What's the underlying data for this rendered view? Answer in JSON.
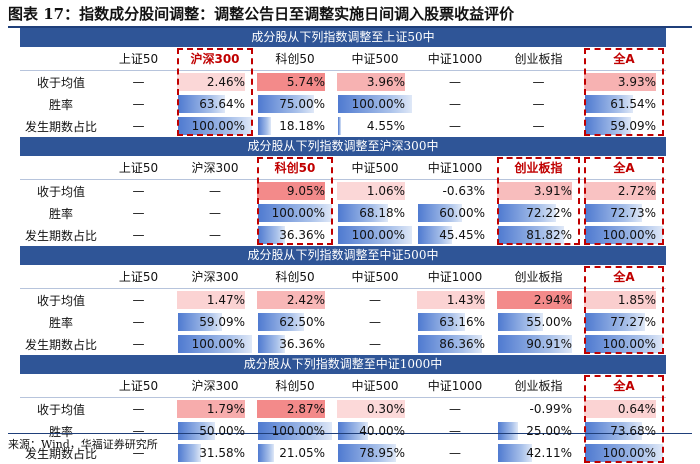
{
  "title": "图表 17：指数成分股间调整：调整公告日至调整实施日间调入股票收益评价",
  "source": "来源：Wind，华福证券研究所",
  "colors": {
    "header_bg": "#2f5597",
    "highlight": "#c00000",
    "bar": "#4f7ad0",
    "pos_strong": "#f07474",
    "pos_light": "#fde4e4"
  },
  "columns": [
    "上证50",
    "沪深300",
    "科创50",
    "中证500",
    "中证1000",
    "创业板指",
    "全A"
  ],
  "row_labels": [
    "收于均值",
    "胜率",
    "发生期数占比"
  ],
  "sections": [
    {
      "title": "成分股从下列指数调整至上证50中",
      "highlight_cols": [
        1,
        6
      ],
      "rows": [
        {
          "values": [
            "—",
            "2.46%",
            "5.74%",
            "3.96%",
            "—",
            "—",
            "3.93%"
          ],
          "kind": "ret",
          "level": [
            null,
            0.12,
            0.8,
            0.45,
            null,
            null,
            0.45
          ]
        },
        {
          "values": [
            "—",
            "63.64%",
            "75.00%",
            "100.00%",
            "—",
            "—",
            "61.54%"
          ],
          "kind": "pct",
          "level": [
            null,
            0.6364,
            0.75,
            1.0,
            null,
            null,
            0.6154
          ]
        },
        {
          "values": [
            "—",
            "100.00%",
            "18.18%",
            "4.55%",
            "—",
            "—",
            "59.09%"
          ],
          "kind": "pct",
          "level": [
            null,
            1.0,
            0.1818,
            0.0455,
            null,
            null,
            0.5909
          ]
        }
      ]
    },
    {
      "title": "成分股从下列指数调整至沪深300中",
      "highlight_cols": [
        2,
        5,
        6
      ],
      "rows": [
        {
          "values": [
            "—",
            "—",
            "9.05%",
            "1.06%",
            "-0.63%",
            "3.91%",
            "2.72%"
          ],
          "kind": "ret",
          "level": [
            null,
            null,
            0.8,
            0.12,
            0,
            0.35,
            0.3
          ]
        },
        {
          "values": [
            "—",
            "—",
            "100.00%",
            "68.18%",
            "60.00%",
            "72.22%",
            "72.73%"
          ],
          "kind": "pct",
          "level": [
            null,
            null,
            1.0,
            0.6818,
            0.6,
            0.7222,
            0.7273
          ]
        },
        {
          "values": [
            "—",
            "—",
            "36.36%",
            "100.00%",
            "45.45%",
            "81.82%",
            "100.00%"
          ],
          "kind": "pct",
          "level": [
            null,
            null,
            0.3636,
            1.0,
            0.4545,
            0.8182,
            1.0
          ]
        }
      ]
    },
    {
      "title": "成分股从下列指数调整至中证500中",
      "highlight_cols": [
        6
      ],
      "rows": [
        {
          "values": [
            "—",
            "1.47%",
            "2.42%",
            "—",
            "1.43%",
            "2.94%",
            "1.85%"
          ],
          "kind": "ret",
          "level": [
            null,
            0.15,
            0.4,
            null,
            0.15,
            0.8,
            0.2
          ]
        },
        {
          "values": [
            "—",
            "59.09%",
            "62.50%",
            "—",
            "63.16%",
            "55.00%",
            "77.27%"
          ],
          "kind": "pct",
          "level": [
            null,
            0.5909,
            0.625,
            null,
            0.6316,
            0.55,
            0.7727
          ]
        },
        {
          "values": [
            "—",
            "100.00%",
            "36.36%",
            "—",
            "86.36%",
            "90.91%",
            "100.00%"
          ],
          "kind": "pct",
          "level": [
            null,
            1.0,
            0.3636,
            null,
            0.8636,
            0.9091,
            1.0
          ]
        }
      ]
    },
    {
      "title": "成分股从下列指数调整至中证1000中",
      "highlight_cols": [
        6
      ],
      "rows": [
        {
          "values": [
            "—",
            "1.79%",
            "2.87%",
            "0.30%",
            "—",
            "-0.99%",
            "0.64%"
          ],
          "kind": "ret",
          "level": [
            null,
            0.5,
            0.8,
            0.1,
            null,
            0,
            0.15
          ]
        },
        {
          "values": [
            "—",
            "50.00%",
            "100.00%",
            "40.00%",
            "—",
            "25.00%",
            "73.68%"
          ],
          "kind": "pct",
          "level": [
            null,
            0.5,
            1.0,
            0.4,
            null,
            0.25,
            0.7368
          ]
        },
        {
          "values": [
            "—",
            "31.58%",
            "21.05%",
            "78.95%",
            "—",
            "42.11%",
            "100.00%"
          ],
          "kind": "pct",
          "level": [
            null,
            0.3158,
            0.2105,
            0.7895,
            null,
            0.4211,
            1.0
          ]
        }
      ]
    }
  ]
}
